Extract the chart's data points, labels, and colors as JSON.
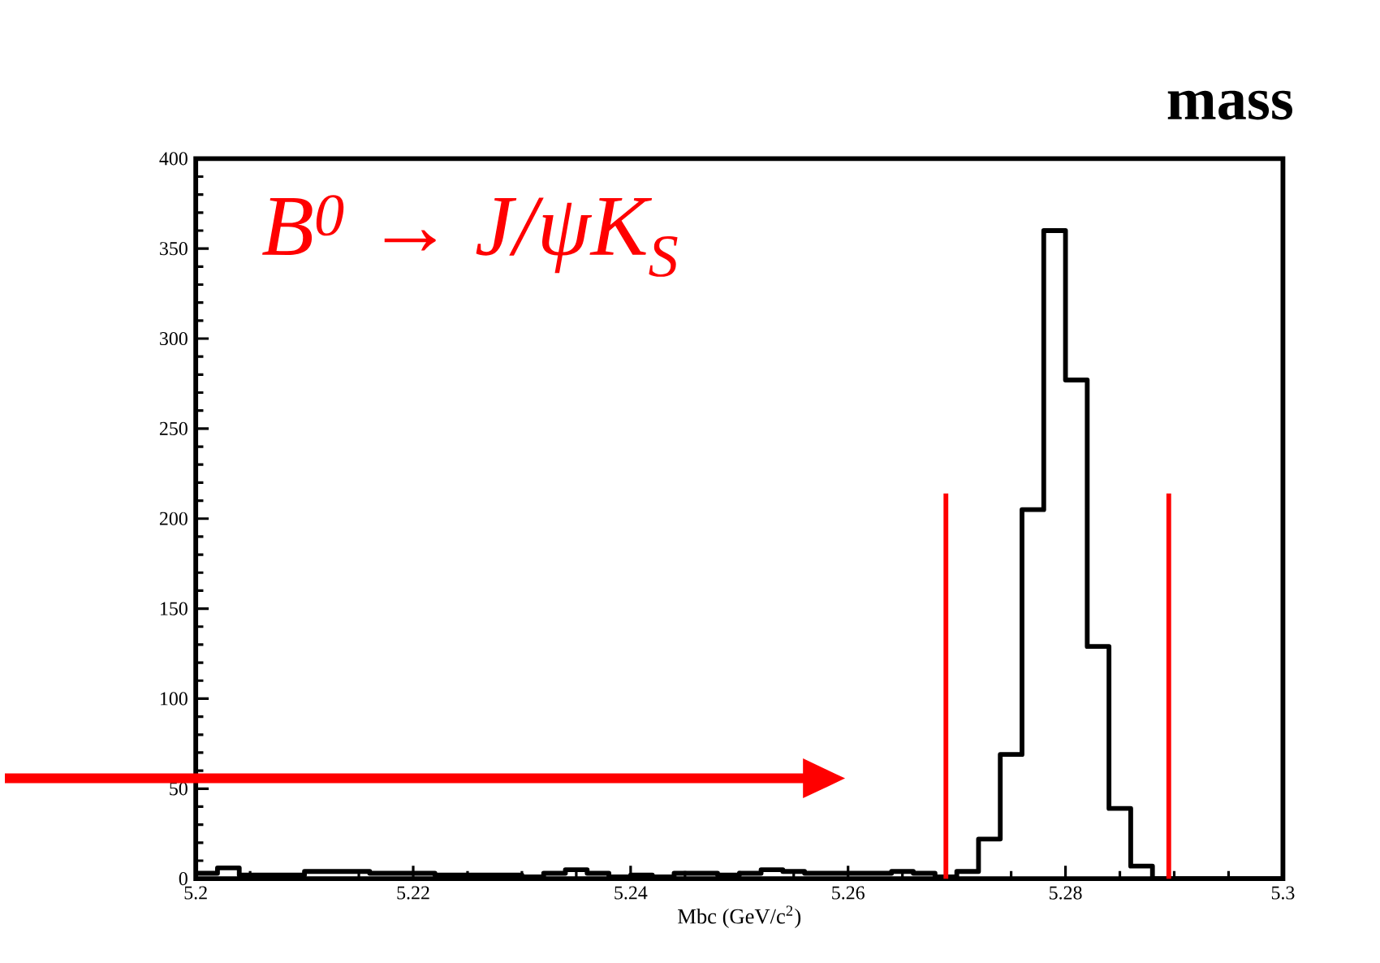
{
  "chart_data": {
    "type": "histogram",
    "title": "mass",
    "xlabel": "Mbc (GeV/c$^{2}$)",
    "annotations": [
      "B$^{0}$ → J/ψK$_{S}$"
    ],
    "bins": [
      5.2,
      5.202,
      5.204,
      5.206,
      5.208,
      5.21,
      5.212,
      5.214,
      5.216,
      5.218,
      5.22,
      5.222,
      5.224,
      5.226,
      5.228,
      5.23,
      5.232,
      5.234,
      5.236,
      5.238,
      5.24,
      5.242,
      5.244,
      5.246,
      5.248,
      5.25,
      5.252,
      5.254,
      5.256,
      5.258,
      5.26,
      5.262,
      5.264,
      5.266,
      5.268,
      5.27,
      5.272,
      5.274,
      5.276,
      5.278,
      5.28,
      5.282,
      5.284,
      5.286,
      5.288,
      5.29,
      5.292,
      5.294,
      5.296,
      5.298,
      5.3
    ],
    "values": [
      3,
      6,
      2,
      2,
      2,
      4,
      4,
      4,
      3,
      3,
      3,
      2,
      2,
      2,
      2,
      1,
      3,
      5,
      3,
      1,
      2,
      1,
      3,
      3,
      2,
      3,
      5,
      4,
      3,
      3,
      3,
      3,
      4,
      3,
      1,
      4,
      22,
      69,
      205,
      360,
      277,
      129,
      39,
      7,
      0,
      0,
      0,
      0,
      0,
      0
    ],
    "color": "#000000",
    "xlim": [
      5.2,
      5.3
    ],
    "ylim": [
      0,
      400
    ],
    "xticks": [
      5.2,
      5.22,
      5.24,
      5.26,
      5.28,
      5.3
    ],
    "yticks": [
      0,
      50,
      100,
      150,
      200,
      250,
      300,
      350,
      400
    ],
    "ref_lines": [
      {
        "axis": "x",
        "value": 5.269,
        "color": "#ff0000"
      },
      {
        "axis": "x",
        "value": 5.2895,
        "color": "#ff0000"
      }
    ]
  }
}
